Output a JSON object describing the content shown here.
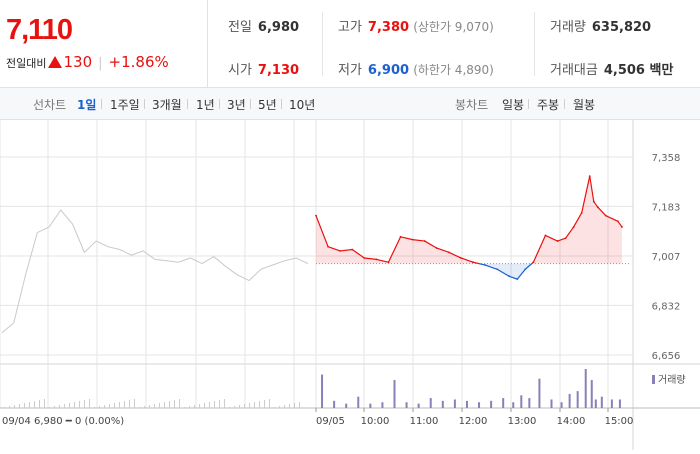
{
  "quote": {
    "current_price": "7,110",
    "change_label": "전일대비",
    "change_value": "130",
    "change_rate": "+1.86%",
    "prev_close_label": "전일",
    "prev_close": "6,980",
    "open_label": "시가",
    "open": "7,130",
    "high_label": "고가",
    "high": "7,380",
    "high_sub": "(상한가 9,070)",
    "low_label": "저가",
    "low": "6,900",
    "low_sub": "(하한가 4,890)",
    "volume_label": "거래량",
    "volume": "635,820",
    "amount_label": "거래대금",
    "amount": "4,506 백만"
  },
  "tabs": {
    "line_label": "선차트",
    "line_tabs": [
      "1일",
      "1주일",
      "3개월",
      "1년",
      "3년",
      "5년",
      "10년"
    ],
    "selected_line_tab": "1일",
    "candle_label": "봉차트",
    "candle_tabs": [
      "일봉",
      "주봉",
      "월봉"
    ]
  },
  "colors": {
    "up": "#e8110f",
    "down": "#1a60d0",
    "grid": "#e5e5e5",
    "prev_day": "#c9c9c9",
    "volume": "#8a7fb8"
  },
  "chart_data": {
    "type": "line",
    "title": "",
    "xlabel": "",
    "ylabel": "",
    "y_ticks": [
      "7,358",
      "7,183",
      "7,007",
      "6,832",
      "6,656"
    ],
    "y_tick_values": [
      7358,
      7183,
      7007,
      6832,
      6656
    ],
    "ylim": [
      6656,
      7358
    ],
    "base_price": 6980,
    "x_tick_labels": [
      "09/05",
      "10:00",
      "11:00",
      "12:00",
      "13:00",
      "14:00",
      "15:00"
    ],
    "prev_day_caption": "09/04  6,980 ━ 0 (0.00%)",
    "volume_legend": "거래량",
    "grid": true,
    "series": [
      {
        "x": [
          "09:00",
          "09:15",
          "09:30",
          "09:45",
          "10:00",
          "10:15",
          "10:30",
          "10:45",
          "11:00",
          "11:15",
          "11:30",
          "11:45",
          "12:00",
          "12:15",
          "12:30",
          "12:45",
          "13:00",
          "13:10",
          "13:20",
          "13:30",
          "13:45",
          "14:00",
          "14:10",
          "14:20",
          "14:30",
          "14:40",
          "14:45",
          "14:50",
          "15:00",
          "15:15",
          "15:20"
        ],
        "values": [
          7150,
          7040,
          7025,
          7030,
          7000,
          6995,
          6985,
          7075,
          7065,
          7060,
          7035,
          7020,
          7000,
          6985,
          6975,
          6960,
          6935,
          6925,
          6960,
          6985,
          7080,
          7060,
          7070,
          7110,
          7160,
          7290,
          7200,
          7180,
          7150,
          7130,
          7110
        ]
      }
    ],
    "prev_day_series": {
      "values": [
        6735,
        6770,
        6940,
        7090,
        7110,
        7170,
        7120,
        7020,
        7060,
        7040,
        7030,
        7010,
        7025,
        6995,
        6990,
        6985,
        7000,
        6980,
        7005,
        6970,
        6940,
        6920,
        6960,
        6975,
        6990,
        7000,
        6980
      ]
    }
  }
}
